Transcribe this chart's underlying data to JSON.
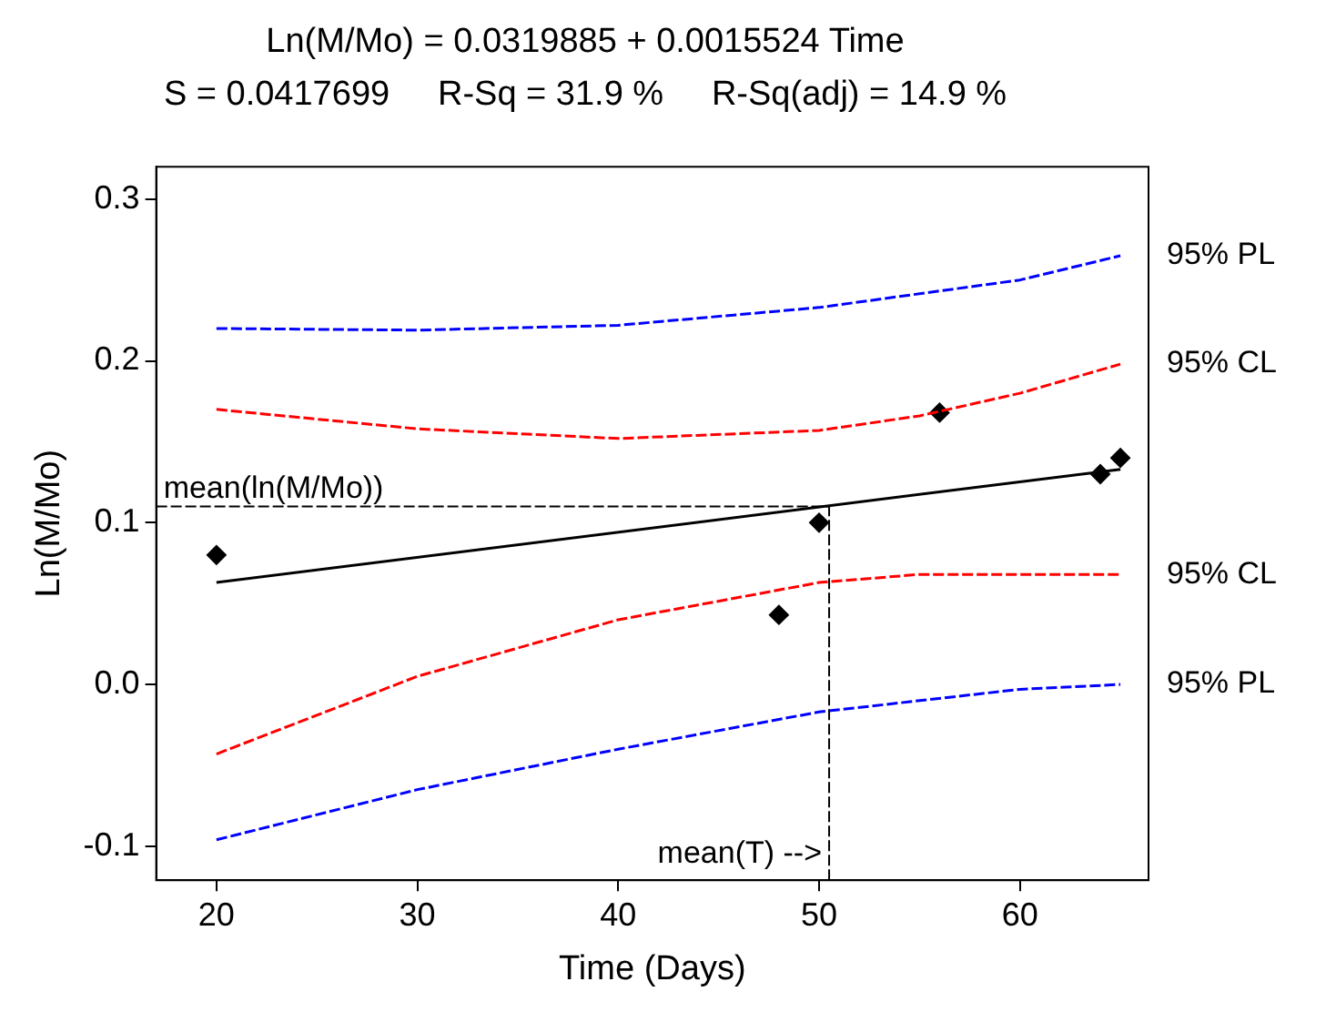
{
  "chart_data": {
    "type": "scatter",
    "title": "Ln(M/Mo) = 0.0319885 + 0.0015524 Time",
    "subtitle": "S = 0.0417699     R-Sq = 31.9 %     R-Sq(adj) = 14.9 %",
    "xlabel": "Time (Days)",
    "ylabel": "Ln(M/Mo)",
    "xlim": [
      17,
      66.4
    ],
    "xticks": [
      20,
      30,
      40,
      50,
      60
    ],
    "ylim": [
      -0.121,
      0.32
    ],
    "yticks": [
      -0.1,
      {
        "value": 0,
        "label": "0.0"
      },
      0.1,
      0.2,
      0.3
    ],
    "grid": false,
    "legend": false,
    "series": [
      {
        "type": "line",
        "name": "95% PL",
        "color": "#0000ff",
        "line_style": "dashed",
        "marker": "none",
        "x": [
          20,
          30,
          40,
          50,
          60,
          65
        ],
        "values": [
          0.22,
          0.219,
          0.222,
          0.233,
          0.25,
          0.265
        ]
      },
      {
        "type": "line",
        "name": "95% CL",
        "color": "#ff0000",
        "line_style": "dashed",
        "marker": "none",
        "x": [
          20,
          30,
          40,
          50,
          55,
          60,
          65
        ],
        "values": [
          0.17,
          0.158,
          0.152,
          0.157,
          0.166,
          0.18,
          0.198
        ]
      },
      {
        "type": "line",
        "color": "#000000",
        "line_style": "solid",
        "marker": "none",
        "x": [
          20,
          65
        ],
        "values": [
          0.063,
          0.133
        ]
      },
      {
        "type": "line",
        "name": "95% CL",
        "color": "#ff0000",
        "line_style": "dashed",
        "marker": "none",
        "x": [
          20,
          30,
          40,
          50,
          55,
          60,
          65
        ],
        "values": [
          -0.043,
          0.005,
          0.04,
          0.063,
          0.068,
          0.068,
          0.068
        ]
      },
      {
        "type": "line",
        "name": "95% PL",
        "color": "#0000ff",
        "line_style": "dashed",
        "marker": "none",
        "x": [
          20,
          30,
          40,
          50,
          60,
          65
        ],
        "values": [
          -0.096,
          -0.065,
          -0.04,
          -0.017,
          -0.003,
          0.0
        ]
      },
      {
        "type": "scatter",
        "color": "#000000",
        "marker": "diamond",
        "x": [
          20,
          48,
          50,
          56,
          64,
          65
        ],
        "values": [
          0.08,
          0.043,
          0.1,
          0.168,
          0.13,
          0.14
        ]
      }
    ],
    "ref_lines": [
      {
        "axis": "y",
        "value": 0.11,
        "label": "mean(ln(M/Mo))",
        "color": "#000000",
        "line_style": "dashed"
      },
      {
        "axis": "x",
        "value": 50.5,
        "label": "mean(T) -->",
        "color": "#000000",
        "line_style": "dashed"
      }
    ]
  }
}
